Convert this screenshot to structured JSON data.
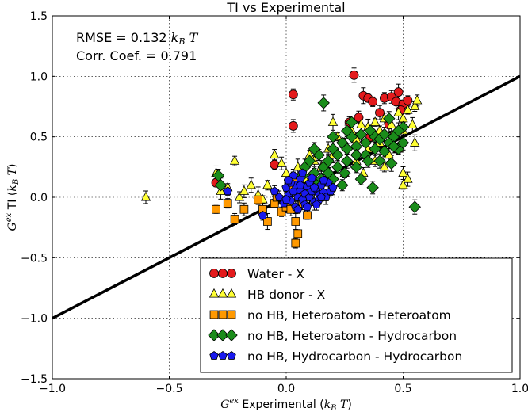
{
  "chart_data": {
    "type": "scatter",
    "title": "TI vs Experimental",
    "xlabel": "G^ex Experimental (k_B T)",
    "ylabel": "G^ex TI (k_B T)",
    "xlim": [
      -1.0,
      1.0
    ],
    "ylim": [
      -1.5,
      1.5
    ],
    "x_ticks": [
      "−1.0",
      "−0.5",
      "0.0",
      "0.5",
      "1.0"
    ],
    "y_ticks": [
      "−1.5",
      "−1.0",
      "−0.5",
      "0.0",
      "0.5",
      "1.0",
      "1.5"
    ],
    "x_tick_values": [
      -1.0,
      -0.5,
      0.0,
      0.5,
      1.0
    ],
    "y_tick_values": [
      -1.5,
      -1.0,
      -0.5,
      0.0,
      0.5,
      1.0,
      1.5
    ],
    "grid": true,
    "legend_position": "lower-right",
    "annotations": [
      "RMSE = 0.132",
      "Corr. Coef. = 0.791"
    ],
    "annotation_units": "k_B T",
    "reference_line": {
      "x": [
        -1.0,
        1.0
      ],
      "y": [
        -1.0,
        1.0
      ]
    },
    "series": [
      {
        "name": "Water - X",
        "marker": "circle",
        "color": "#e31a1c",
        "points": [
          [
            -0.3,
            0.12
          ],
          [
            -0.05,
            0.27
          ],
          [
            0.03,
            0.85
          ],
          [
            0.03,
            0.59
          ],
          [
            0.29,
            1.01
          ],
          [
            0.33,
            0.84
          ],
          [
            0.35,
            0.82
          ],
          [
            0.37,
            0.79
          ],
          [
            0.42,
            0.82
          ],
          [
            0.45,
            0.83
          ],
          [
            0.47,
            0.79
          ],
          [
            0.48,
            0.87
          ],
          [
            0.5,
            0.77
          ],
          [
            0.52,
            0.8
          ],
          [
            0.27,
            0.62
          ],
          [
            0.31,
            0.66
          ],
          [
            0.4,
            0.7
          ],
          [
            0.44,
            0.6
          ],
          [
            0.49,
            0.72
          ],
          [
            0.36,
            0.5
          ]
        ]
      },
      {
        "name": "HB donor - X",
        "marker": "triangle",
        "color": "#ffff33",
        "points": [
          [
            -0.6,
            0.0
          ],
          [
            -0.3,
            0.2
          ],
          [
            -0.28,
            0.05
          ],
          [
            -0.25,
            0.08
          ],
          [
            -0.22,
            0.3
          ],
          [
            -0.2,
            0.0
          ],
          [
            -0.18,
            0.05
          ],
          [
            -0.15,
            0.1
          ],
          [
            -0.12,
            0.02
          ],
          [
            -0.1,
            -0.02
          ],
          [
            -0.08,
            0.1
          ],
          [
            -0.05,
            0.35
          ],
          [
            -0.02,
            0.28
          ],
          [
            0.0,
            0.2
          ],
          [
            0.05,
            0.25
          ],
          [
            0.08,
            0.15
          ],
          [
            0.1,
            0.35
          ],
          [
            0.12,
            0.3
          ],
          [
            0.15,
            0.25
          ],
          [
            0.18,
            0.4
          ],
          [
            0.2,
            0.35
          ],
          [
            0.22,
            0.5
          ],
          [
            0.25,
            0.45
          ],
          [
            0.28,
            0.55
          ],
          [
            0.3,
            0.48
          ],
          [
            0.32,
            0.6
          ],
          [
            0.35,
            0.58
          ],
          [
            0.38,
            0.62
          ],
          [
            0.4,
            0.55
          ],
          [
            0.42,
            0.65
          ],
          [
            0.45,
            0.6
          ],
          [
            0.48,
            0.7
          ],
          [
            0.5,
            0.65
          ],
          [
            0.52,
            0.72
          ],
          [
            0.55,
            0.75
          ],
          [
            0.56,
            0.8
          ],
          [
            0.3,
            0.3
          ],
          [
            0.35,
            0.4
          ],
          [
            0.4,
            0.45
          ],
          [
            0.45,
            0.5
          ],
          [
            0.5,
            0.55
          ],
          [
            0.48,
            0.4
          ],
          [
            0.5,
            0.2
          ],
          [
            0.52,
            0.15
          ],
          [
            0.55,
            0.45
          ],
          [
            0.15,
            0.05
          ],
          [
            0.25,
            0.2
          ],
          [
            0.38,
            0.3
          ],
          [
            0.44,
            0.35
          ],
          [
            0.54,
            0.6
          ],
          [
            0.2,
            0.62
          ],
          [
            0.5,
            0.1
          ],
          [
            0.42,
            0.25
          ],
          [
            0.33,
            0.2
          ]
        ]
      },
      {
        "name": "no HB, Heteroatom - Heteroatom",
        "marker": "square",
        "color": "#ff9900",
        "points": [
          [
            -0.3,
            -0.1
          ],
          [
            -0.25,
            -0.05
          ],
          [
            -0.22,
            -0.18
          ],
          [
            -0.18,
            -0.1
          ],
          [
            -0.1,
            -0.1
          ],
          [
            -0.08,
            -0.2
          ],
          [
            -0.05,
            -0.05
          ],
          [
            -0.02,
            -0.12
          ],
          [
            0.0,
            -0.08
          ],
          [
            0.02,
            -0.1
          ],
          [
            0.03,
            0.15
          ],
          [
            0.04,
            -0.2
          ],
          [
            0.05,
            -0.3
          ],
          [
            0.04,
            -0.38
          ],
          [
            0.06,
            0.05
          ],
          [
            0.07,
            -0.05
          ],
          [
            -0.04,
            0.0
          ],
          [
            0.01,
            0.1
          ],
          [
            0.09,
            -0.15
          ],
          [
            -0.12,
            -0.02
          ]
        ]
      },
      {
        "name": "no HB, Heteroatom - Hydrocarbon",
        "marker": "diamond",
        "color": "#1a8c1a",
        "points": [
          [
            -0.29,
            0.18
          ],
          [
            -0.28,
            0.1
          ],
          [
            0.08,
            0.25
          ],
          [
            0.1,
            0.3
          ],
          [
            0.12,
            0.2
          ],
          [
            0.14,
            0.35
          ],
          [
            0.16,
            0.25
          ],
          [
            0.18,
            0.3
          ],
          [
            0.2,
            0.4
          ],
          [
            0.22,
            0.35
          ],
          [
            0.24,
            0.45
          ],
          [
            0.26,
            0.4
          ],
          [
            0.28,
            0.5
          ],
          [
            0.3,
            0.42
          ],
          [
            0.32,
            0.52
          ],
          [
            0.34,
            0.45
          ],
          [
            0.36,
            0.55
          ],
          [
            0.38,
            0.5
          ],
          [
            0.4,
            0.48
          ],
          [
            0.42,
            0.52
          ],
          [
            0.44,
            0.45
          ],
          [
            0.46,
            0.5
          ],
          [
            0.48,
            0.4
          ],
          [
            0.18,
            0.2
          ],
          [
            0.22,
            0.25
          ],
          [
            0.26,
            0.3
          ],
          [
            0.3,
            0.35
          ],
          [
            0.34,
            0.35
          ],
          [
            0.38,
            0.4
          ],
          [
            0.42,
            0.38
          ],
          [
            0.46,
            0.42
          ],
          [
            0.5,
            0.45
          ],
          [
            0.15,
            0.15
          ],
          [
            0.2,
            0.15
          ],
          [
            0.25,
            0.2
          ],
          [
            0.3,
            0.25
          ],
          [
            0.35,
            0.3
          ],
          [
            0.4,
            0.3
          ],
          [
            0.16,
            0.78
          ],
          [
            0.1,
            0.05
          ],
          [
            0.13,
            0.1
          ],
          [
            0.24,
            0.1
          ],
          [
            0.37,
            0.08
          ],
          [
            0.55,
            -0.08
          ],
          [
            0.45,
            0.28
          ],
          [
            0.28,
            0.62
          ],
          [
            0.5,
            0.58
          ],
          [
            0.32,
            0.15
          ],
          [
            0.12,
            0.4
          ],
          [
            0.44,
            0.65
          ],
          [
            0.48,
            0.55
          ],
          [
            0.07,
            0.18
          ],
          [
            0.2,
            0.5
          ],
          [
            0.26,
            0.55
          ]
        ]
      },
      {
        "name": "no HB, Hydrocarbon - Hydrocarbon",
        "marker": "pentagon",
        "color": "#1a1aee",
        "points": [
          [
            -0.25,
            0.05
          ],
          [
            -0.1,
            -0.15
          ],
          [
            -0.05,
            0.05
          ],
          [
            -0.03,
            0.0
          ],
          [
            -0.01,
            -0.05
          ],
          [
            0.0,
            0.08
          ],
          [
            0.01,
            0.02
          ],
          [
            0.02,
            -0.03
          ],
          [
            0.03,
            0.05
          ],
          [
            0.04,
            0.1
          ],
          [
            0.05,
            0.0
          ],
          [
            0.06,
            0.06
          ],
          [
            0.07,
            -0.02
          ],
          [
            0.08,
            0.03
          ],
          [
            0.09,
            0.09
          ],
          [
            0.1,
            0.0
          ],
          [
            0.11,
            0.05
          ],
          [
            0.12,
            -0.04
          ],
          [
            0.13,
            0.07
          ],
          [
            0.14,
            0.02
          ],
          [
            0.15,
            0.1
          ],
          [
            0.16,
            0.04
          ],
          [
            0.17,
            0.0
          ],
          [
            0.18,
            0.12
          ],
          [
            0.19,
            0.05
          ],
          [
            0.02,
            0.12
          ],
          [
            0.04,
            -0.08
          ],
          [
            0.06,
            0.15
          ],
          [
            0.08,
            -0.06
          ],
          [
            0.1,
            0.12
          ],
          [
            0.12,
            0.08
          ],
          [
            0.14,
            -0.02
          ],
          [
            0.16,
            0.14
          ],
          [
            0.03,
            0.18
          ],
          [
            0.07,
            0.2
          ],
          [
            0.11,
            0.16
          ],
          [
            0.05,
            -0.1
          ],
          [
            0.09,
            -0.08
          ],
          [
            0.13,
            -0.06
          ],
          [
            0.01,
            0.14
          ],
          [
            0.2,
            0.08
          ],
          [
            0.0,
            -0.02
          ],
          [
            0.15,
            0.0
          ],
          [
            0.06,
            0.1
          ]
        ]
      }
    ]
  }
}
